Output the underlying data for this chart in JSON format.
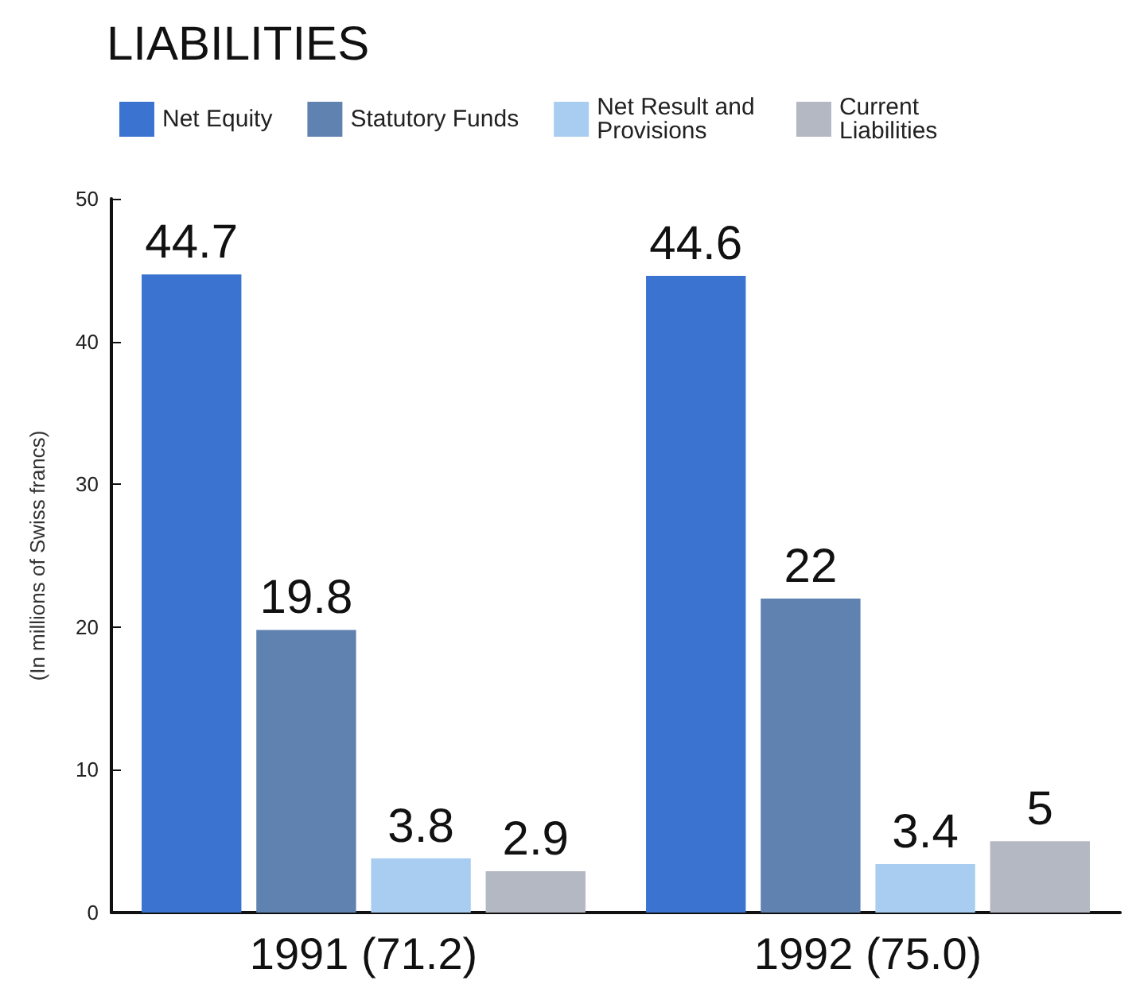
{
  "chart_data": {
    "type": "bar",
    "title": "LIABILITIES",
    "ylabel": "(In millions of Swiss francs)",
    "categories": [
      "1991 (71.2)",
      "1992 (75.0)"
    ],
    "series": [
      {
        "name": "Net Equity",
        "color": "#3a74d0",
        "values": [
          44.7,
          44.6
        ]
      },
      {
        "name": "Statutory Funds",
        "color": "#5f82b0",
        "values": [
          19.8,
          22
        ]
      },
      {
        "name": "Net Result and Provisions",
        "color": "#a9cdf0",
        "values": [
          3.8,
          3.4
        ]
      },
      {
        "name": "Current Liabilities",
        "color": "#b4b8c2",
        "values": [
          2.9,
          5
        ]
      }
    ],
    "ylim": [
      0,
      50
    ],
    "yticks": [
      0,
      10,
      20,
      30,
      40,
      50
    ],
    "grid": false,
    "legend": "top",
    "data_labels": true
  }
}
